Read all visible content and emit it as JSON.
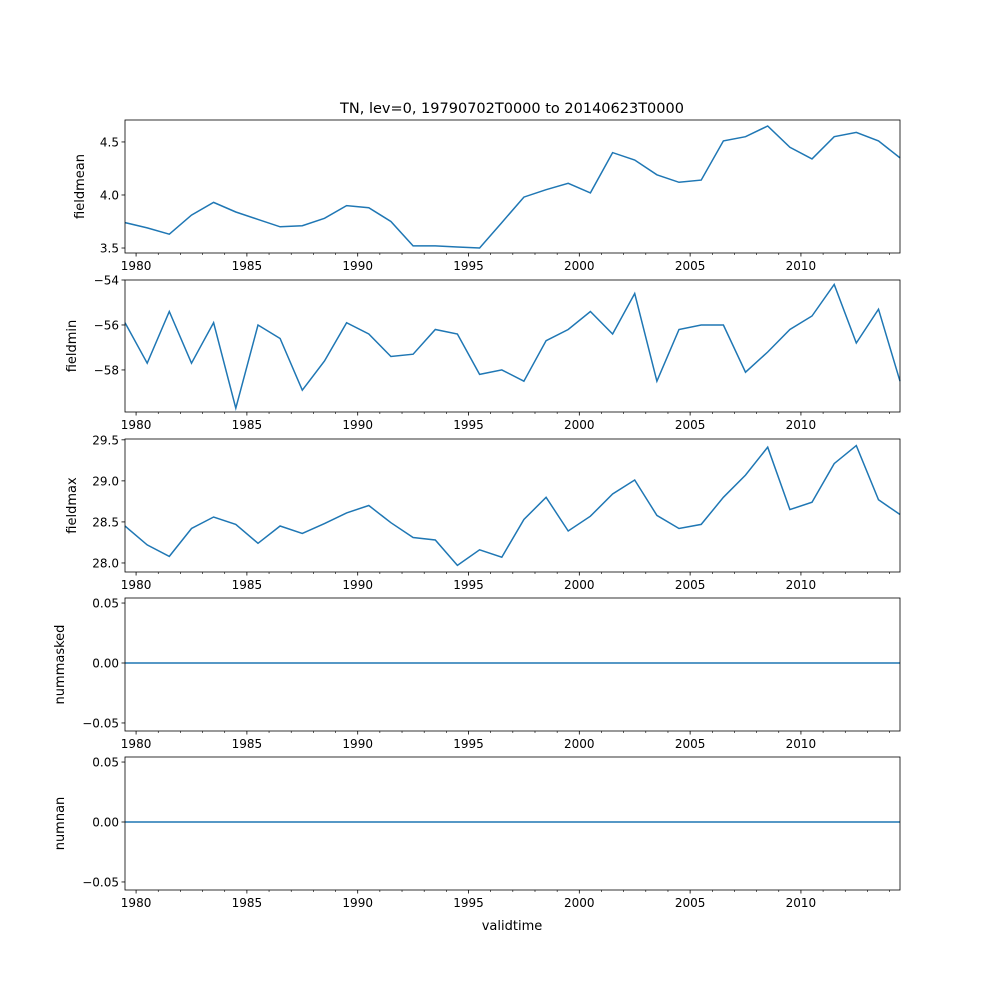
{
  "chart_data": {
    "type": "line",
    "title": "TN, lev=0, 19790702T0000 to 20140623T0000",
    "xlabel": "validtime",
    "xlim": [
      1979.5,
      2014.47
    ],
    "x_major_ticks": [
      1980,
      1985,
      1990,
      1995,
      2000,
      2005,
      2010
    ],
    "x_minor_step": 1,
    "x": [
      1979.5,
      1980.5,
      1981.5,
      1982.5,
      1983.5,
      1984.5,
      1985.5,
      1986.5,
      1987.5,
      1988.5,
      1989.5,
      1990.5,
      1991.5,
      1992.5,
      1993.5,
      1994.5,
      1995.5,
      1996.5,
      1997.5,
      1998.5,
      1999.5,
      2000.5,
      2001.5,
      2002.5,
      2003.5,
      2004.5,
      2005.5,
      2006.5,
      2007.5,
      2008.5,
      2009.5,
      2010.5,
      2011.5,
      2012.5,
      2013.5,
      2014.47
    ],
    "color": "#1f77b4",
    "panels": [
      {
        "ylabel": "fieldmean",
        "ylim": [
          3.453,
          4.707
        ],
        "yticks": [
          "3.5",
          "4.0",
          "4.5"
        ],
        "ytick_values": [
          3.5,
          4.0,
          4.5
        ],
        "values": [
          3.74,
          3.69,
          3.63,
          3.81,
          3.93,
          3.84,
          3.77,
          3.7,
          3.71,
          3.78,
          3.9,
          3.88,
          3.75,
          3.52,
          3.52,
          3.51,
          3.5,
          3.74,
          3.98,
          4.05,
          4.11,
          4.02,
          4.4,
          4.33,
          4.19,
          4.12,
          4.14,
          4.51,
          4.55,
          4.65,
          4.45,
          4.34,
          4.55,
          4.59,
          4.51,
          4.35
        ]
      },
      {
        "ylabel": "fieldmin",
        "ylim": [
          -59.87,
          -54.0
        ],
        "yticks": [
          "−54",
          "−56",
          "−58"
        ],
        "ytick_values": [
          -54,
          -56,
          -58
        ],
        "values": [
          -55.9,
          -57.7,
          -55.4,
          -57.7,
          -55.9,
          -59.7,
          -56.0,
          -56.6,
          -58.9,
          -57.6,
          -55.9,
          -56.4,
          -57.4,
          -57.3,
          -56.2,
          -56.4,
          -58.2,
          -58.0,
          -58.5,
          -56.7,
          -56.2,
          -55.4,
          -56.4,
          -54.6,
          -58.5,
          -56.2,
          -56.0,
          -56.0,
          -58.1,
          -57.2,
          -56.2,
          -55.6,
          -54.2,
          -56.8,
          -55.3,
          -58.5
        ]
      },
      {
        "ylabel": "fieldmax",
        "ylim": [
          27.89,
          29.51
        ],
        "yticks": [
          "28.0",
          "28.5",
          "29.0",
          "29.5"
        ],
        "ytick_values": [
          28.0,
          28.5,
          29.0,
          29.5
        ],
        "values": [
          28.45,
          28.22,
          28.08,
          28.42,
          28.56,
          28.47,
          28.24,
          28.45,
          28.36,
          28.48,
          28.61,
          28.7,
          28.49,
          28.31,
          28.28,
          27.97,
          28.16,
          28.07,
          28.53,
          28.8,
          28.39,
          28.57,
          28.84,
          29.01,
          28.58,
          28.42,
          28.47,
          28.8,
          29.07,
          29.41,
          28.65,
          28.74,
          29.21,
          29.43,
          28.77,
          28.59
        ]
      },
      {
        "ylabel": "nummasked",
        "ylim": [
          -0.0567,
          0.0542
        ],
        "yticks": [
          "−0.05",
          "0.00",
          "0.05"
        ],
        "ytick_values": [
          -0.05,
          0,
          0.05
        ],
        "values": [
          0,
          0,
          0,
          0,
          0,
          0,
          0,
          0,
          0,
          0,
          0,
          0,
          0,
          0,
          0,
          0,
          0,
          0,
          0,
          0,
          0,
          0,
          0,
          0,
          0,
          0,
          0,
          0,
          0,
          0,
          0,
          0,
          0,
          0,
          0,
          0
        ]
      },
      {
        "ylabel": "numnan",
        "ylim": [
          -0.0567,
          0.0542
        ],
        "yticks": [
          "−0.05",
          "0.00",
          "0.05"
        ],
        "ytick_values": [
          -0.05,
          0,
          0.05
        ],
        "values": [
          0,
          0,
          0,
          0,
          0,
          0,
          0,
          0,
          0,
          0,
          0,
          0,
          0,
          0,
          0,
          0,
          0,
          0,
          0,
          0,
          0,
          0,
          0,
          0,
          0,
          0,
          0,
          0,
          0,
          0,
          0,
          0,
          0,
          0,
          0,
          0
        ]
      }
    ]
  }
}
